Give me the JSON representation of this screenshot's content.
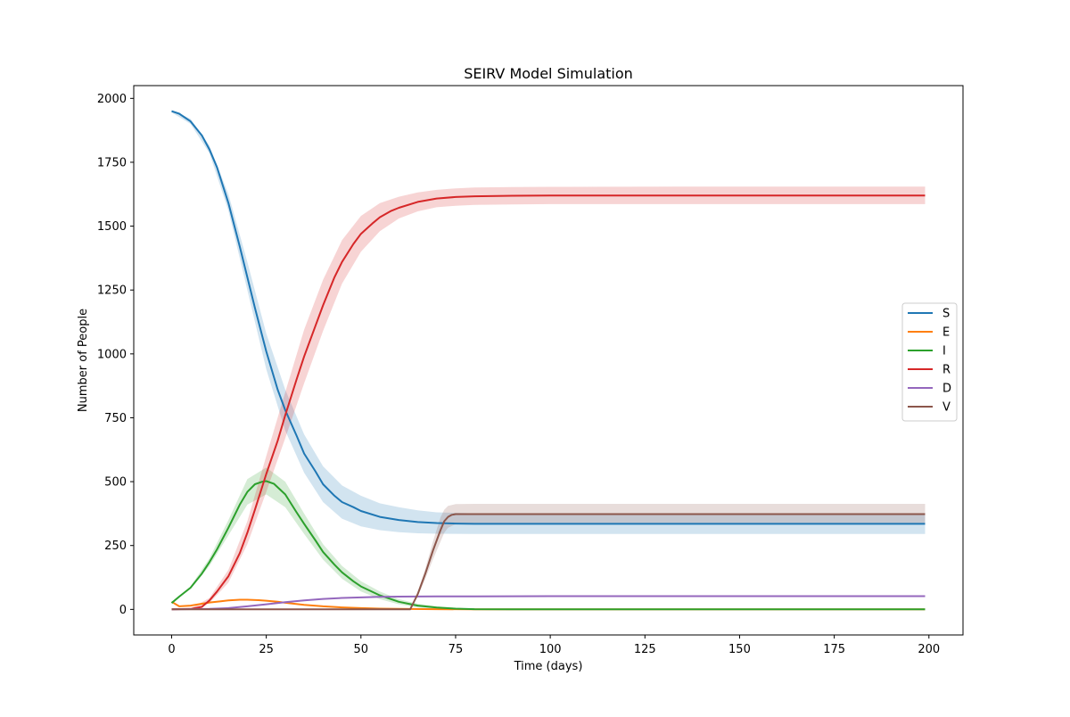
{
  "chart_data": {
    "type": "line",
    "title": "SEIRV Model Simulation",
    "xlabel": "Time (days)",
    "ylabel": "Number of People",
    "xlim": [
      -10,
      209
    ],
    "ylim": [
      -100,
      2050
    ],
    "xticks": [
      0,
      25,
      50,
      75,
      100,
      125,
      150,
      175,
      200
    ],
    "yticks": [
      0,
      250,
      500,
      750,
      1000,
      1250,
      1500,
      1750,
      2000
    ],
    "grid": false,
    "legend_position": "center-right",
    "confidence_bands": true,
    "series": [
      {
        "name": "S",
        "color": "#1f77b4",
        "band": true,
        "points": [
          [
            0,
            1950
          ],
          [
            2,
            1940
          ],
          [
            5,
            1910
          ],
          [
            8,
            1855
          ],
          [
            10,
            1800
          ],
          [
            12,
            1730
          ],
          [
            15,
            1590
          ],
          [
            18,
            1420
          ],
          [
            20,
            1300
          ],
          [
            22,
            1180
          ],
          [
            25,
            1010
          ],
          [
            28,
            860
          ],
          [
            30,
            780
          ],
          [
            33,
            680
          ],
          [
            35,
            610
          ],
          [
            38,
            540
          ],
          [
            40,
            490
          ],
          [
            43,
            445
          ],
          [
            45,
            420
          ],
          [
            48,
            400
          ],
          [
            50,
            385
          ],
          [
            55,
            362
          ],
          [
            60,
            350
          ],
          [
            65,
            342
          ],
          [
            70,
            338
          ],
          [
            75,
            336
          ],
          [
            80,
            335
          ],
          [
            90,
            335
          ],
          [
            100,
            335
          ],
          [
            150,
            335
          ],
          [
            199,
            335
          ]
        ],
        "band_upper": [
          [
            0,
            1955
          ],
          [
            5,
            1920
          ],
          [
            10,
            1815
          ],
          [
            15,
            1625
          ],
          [
            20,
            1360
          ],
          [
            25,
            1080
          ],
          [
            30,
            860
          ],
          [
            35,
            685
          ],
          [
            40,
            560
          ],
          [
            45,
            485
          ],
          [
            50,
            445
          ],
          [
            55,
            415
          ],
          [
            60,
            400
          ],
          [
            65,
            388
          ],
          [
            70,
            380
          ],
          [
            80,
            376
          ],
          [
            100,
            375
          ],
          [
            150,
            375
          ],
          [
            199,
            375
          ]
        ],
        "band_lower": [
          [
            0,
            1945
          ],
          [
            5,
            1900
          ],
          [
            10,
            1785
          ],
          [
            15,
            1560
          ],
          [
            20,
            1250
          ],
          [
            25,
            940
          ],
          [
            30,
            700
          ],
          [
            35,
            535
          ],
          [
            40,
            420
          ],
          [
            45,
            355
          ],
          [
            50,
            325
          ],
          [
            55,
            310
          ],
          [
            60,
            302
          ],
          [
            65,
            298
          ],
          [
            70,
            296
          ],
          [
            80,
            295
          ],
          [
            100,
            295
          ],
          [
            150,
            295
          ],
          [
            199,
            295
          ]
        ]
      },
      {
        "name": "E",
        "color": "#ff7f0e",
        "band": false,
        "points": [
          [
            0,
            30
          ],
          [
            2,
            12
          ],
          [
            5,
            15
          ],
          [
            8,
            22
          ],
          [
            10,
            27
          ],
          [
            13,
            32
          ],
          [
            15,
            35
          ],
          [
            18,
            38
          ],
          [
            20,
            38
          ],
          [
            23,
            36
          ],
          [
            25,
            34
          ],
          [
            28,
            30
          ],
          [
            30,
            26
          ],
          [
            35,
            18
          ],
          [
            40,
            12
          ],
          [
            45,
            8
          ],
          [
            50,
            5
          ],
          [
            55,
            3
          ],
          [
            60,
            2
          ],
          [
            70,
            1
          ],
          [
            80,
            0
          ],
          [
            100,
            0
          ],
          [
            150,
            0
          ],
          [
            199,
            0
          ]
        ]
      },
      {
        "name": "I",
        "color": "#2ca02c",
        "band": true,
        "points": [
          [
            0,
            25
          ],
          [
            2,
            50
          ],
          [
            5,
            85
          ],
          [
            8,
            140
          ],
          [
            10,
            185
          ],
          [
            12,
            235
          ],
          [
            15,
            320
          ],
          [
            18,
            410
          ],
          [
            20,
            460
          ],
          [
            22,
            490
          ],
          [
            24,
            500
          ],
          [
            25,
            502
          ],
          [
            27,
            492
          ],
          [
            30,
            450
          ],
          [
            33,
            380
          ],
          [
            35,
            335
          ],
          [
            38,
            270
          ],
          [
            40,
            225
          ],
          [
            43,
            175
          ],
          [
            45,
            145
          ],
          [
            48,
            110
          ],
          [
            50,
            90
          ],
          [
            55,
            55
          ],
          [
            60,
            30
          ],
          [
            65,
            15
          ],
          [
            70,
            7
          ],
          [
            75,
            3
          ],
          [
            80,
            1
          ],
          [
            90,
            0
          ],
          [
            100,
            0
          ],
          [
            150,
            0
          ],
          [
            199,
            0
          ]
        ],
        "band_upper": [
          [
            0,
            27
          ],
          [
            5,
            90
          ],
          [
            10,
            200
          ],
          [
            15,
            350
          ],
          [
            20,
            510
          ],
          [
            25,
            555
          ],
          [
            30,
            500
          ],
          [
            35,
            375
          ],
          [
            40,
            255
          ],
          [
            45,
            170
          ],
          [
            50,
            110
          ],
          [
            55,
            70
          ],
          [
            60,
            40
          ],
          [
            65,
            22
          ],
          [
            70,
            12
          ],
          [
            75,
            6
          ],
          [
            80,
            3
          ],
          [
            90,
            1
          ],
          [
            199,
            0
          ]
        ],
        "band_lower": [
          [
            0,
            23
          ],
          [
            5,
            80
          ],
          [
            10,
            170
          ],
          [
            15,
            290
          ],
          [
            20,
            410
          ],
          [
            25,
            450
          ],
          [
            30,
            400
          ],
          [
            35,
            295
          ],
          [
            40,
            195
          ],
          [
            45,
            120
          ],
          [
            50,
            70
          ],
          [
            55,
            40
          ],
          [
            60,
            20
          ],
          [
            65,
            8
          ],
          [
            70,
            2
          ],
          [
            75,
            0
          ],
          [
            199,
            0
          ]
        ]
      },
      {
        "name": "R",
        "color": "#d62728",
        "band": true,
        "points": [
          [
            0,
            0
          ],
          [
            5,
            2
          ],
          [
            8,
            10
          ],
          [
            10,
            35
          ],
          [
            12,
            70
          ],
          [
            15,
            130
          ],
          [
            18,
            220
          ],
          [
            20,
            300
          ],
          [
            22,
            390
          ],
          [
            25,
            530
          ],
          [
            28,
            660
          ],
          [
            30,
            760
          ],
          [
            33,
            900
          ],
          [
            35,
            990
          ],
          [
            38,
            1110
          ],
          [
            40,
            1190
          ],
          [
            43,
            1300
          ],
          [
            45,
            1360
          ],
          [
            48,
            1430
          ],
          [
            50,
            1470
          ],
          [
            53,
            1510
          ],
          [
            55,
            1535
          ],
          [
            58,
            1560
          ],
          [
            60,
            1572
          ],
          [
            65,
            1595
          ],
          [
            70,
            1608
          ],
          [
            75,
            1614
          ],
          [
            80,
            1617
          ],
          [
            90,
            1619
          ],
          [
            100,
            1620
          ],
          [
            150,
            1620
          ],
          [
            199,
            1620
          ]
        ],
        "band_upper": [
          [
            0,
            0
          ],
          [
            5,
            4
          ],
          [
            10,
            45
          ],
          [
            15,
            155
          ],
          [
            20,
            345
          ],
          [
            25,
            600
          ],
          [
            30,
            850
          ],
          [
            35,
            1095
          ],
          [
            40,
            1290
          ],
          [
            45,
            1445
          ],
          [
            50,
            1540
          ],
          [
            55,
            1590
          ],
          [
            60,
            1615
          ],
          [
            65,
            1632
          ],
          [
            70,
            1642
          ],
          [
            75,
            1648
          ],
          [
            80,
            1651
          ],
          [
            90,
            1653
          ],
          [
            100,
            1654
          ],
          [
            150,
            1655
          ],
          [
            199,
            1655
          ]
        ],
        "band_lower": [
          [
            0,
            0
          ],
          [
            5,
            0
          ],
          [
            10,
            25
          ],
          [
            15,
            105
          ],
          [
            20,
            255
          ],
          [
            25,
            460
          ],
          [
            30,
            670
          ],
          [
            35,
            885
          ],
          [
            40,
            1090
          ],
          [
            45,
            1275
          ],
          [
            50,
            1400
          ],
          [
            55,
            1480
          ],
          [
            60,
            1530
          ],
          [
            65,
            1558
          ],
          [
            70,
            1574
          ],
          [
            75,
            1580
          ],
          [
            80,
            1583
          ],
          [
            90,
            1585
          ],
          [
            100,
            1586
          ],
          [
            150,
            1586
          ],
          [
            199,
            1586
          ]
        ]
      },
      {
        "name": "D",
        "color": "#9467bd",
        "band": false,
        "points": [
          [
            0,
            0
          ],
          [
            10,
            2
          ],
          [
            15,
            5
          ],
          [
            20,
            12
          ],
          [
            25,
            20
          ],
          [
            30,
            28
          ],
          [
            35,
            35
          ],
          [
            40,
            41
          ],
          [
            45,
            45
          ],
          [
            50,
            47
          ],
          [
            55,
            49
          ],
          [
            60,
            50
          ],
          [
            70,
            51
          ],
          [
            80,
            51
          ],
          [
            100,
            52
          ],
          [
            150,
            52
          ],
          [
            199,
            52
          ]
        ]
      },
      {
        "name": "V",
        "color": "#8c564b",
        "band": true,
        "points": [
          [
            0,
            0
          ],
          [
            20,
            0
          ],
          [
            40,
            0
          ],
          [
            60,
            0
          ],
          [
            63,
            0
          ],
          [
            65,
            60
          ],
          [
            67,
            140
          ],
          [
            69,
            230
          ],
          [
            71,
            310
          ],
          [
            72,
            345
          ],
          [
            73,
            362
          ],
          [
            74,
            370
          ],
          [
            75,
            373
          ],
          [
            80,
            373
          ],
          [
            100,
            373
          ],
          [
            150,
            373
          ],
          [
            199,
            373
          ]
        ],
        "band_upper": [
          [
            0,
            0
          ],
          [
            63,
            0
          ],
          [
            65,
            70
          ],
          [
            67,
            160
          ],
          [
            69,
            265
          ],
          [
            71,
            360
          ],
          [
            72,
            390
          ],
          [
            73,
            405
          ],
          [
            75,
            412
          ],
          [
            80,
            413
          ],
          [
            100,
            413
          ],
          [
            150,
            413
          ],
          [
            199,
            413
          ]
        ],
        "band_lower": [
          [
            0,
            0
          ],
          [
            63,
            0
          ],
          [
            65,
            50
          ],
          [
            67,
            120
          ],
          [
            69,
            195
          ],
          [
            71,
            265
          ],
          [
            72,
            300
          ],
          [
            73,
            320
          ],
          [
            75,
            333
          ],
          [
            80,
            333
          ],
          [
            100,
            333
          ],
          [
            150,
            333
          ],
          [
            199,
            333
          ]
        ]
      }
    ]
  }
}
